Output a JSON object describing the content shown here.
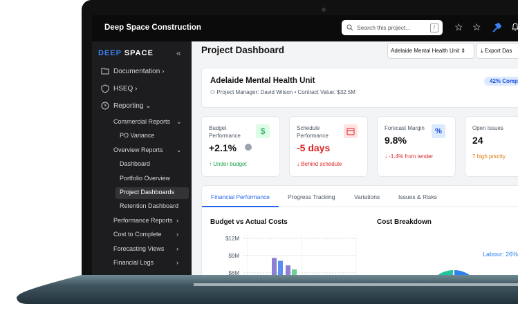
{
  "topbar": {
    "brand": "Deep Space Construction",
    "search_placeholder": "Search this project...",
    "search_key": "/"
  },
  "sidebar": {
    "logo_a": "DEEP",
    "logo_b": "SPACE",
    "collapse": "«",
    "items": [
      "Documentation",
      "HSEQ",
      "Reporting",
      "Commercial Reports",
      "PO Variance",
      "Overview Reports",
      "Dashboard",
      "Portfolio Overview",
      "Project Dashboards",
      "Retention Dashboard",
      "Performance Reports",
      "Cost to Complete",
      "Forecasting Views",
      "Financial Logs"
    ]
  },
  "header": {
    "title": "Project Dashboard",
    "project_select": "Adelaide Mental Health Unit",
    "export": "Export Das"
  },
  "project": {
    "name": "Adelaide Mental Health Unit",
    "manager": "Project Manager: David Wilson",
    "contract": "Contract Value: $32.5M",
    "badge": "42% Comp"
  },
  "kpis": [
    {
      "label": "Budget Performance",
      "icon": "$",
      "value": "+2.1%",
      "note": "↑ Under budget"
    },
    {
      "label": "Schedule Performance",
      "value": "-5 days",
      "note": "↓ Behind schedule"
    },
    {
      "label": "Forecast Margin",
      "icon": "%",
      "value": "9.8%",
      "note": "↓ -1.4% from tender"
    },
    {
      "label": "Open Issues",
      "value": "24",
      "note": "7 high priority"
    }
  ],
  "tabs": [
    "Financial Performance",
    "Progress Tracking",
    "Variations",
    "Issues & Risks"
  ],
  "budget_chart": {
    "type": "bar",
    "title": "Budget vs Actual Costs",
    "ylim": [
      6,
      12
    ],
    "yticks": [
      {
        "value": 12,
        "label": "$12M"
      },
      {
        "value": 9,
        "label": "$9M"
      },
      {
        "value": 6,
        "label": "$6M"
      }
    ],
    "bars": [
      {
        "color": "#8b80d6",
        "value": 8.6
      },
      {
        "color": "#5b8def",
        "value": 8.1
      },
      {
        "color": "#8b80d6",
        "value": 7.3
      },
      {
        "color": "#6fcf97",
        "value": 6.6
      }
    ]
  },
  "cost_chart": {
    "type": "pie",
    "title": "Cost Breakdown",
    "values": [
      26
    ],
    "value_labels": [
      "Labour: 26%"
    ],
    "color": "#2f80ed"
  }
}
